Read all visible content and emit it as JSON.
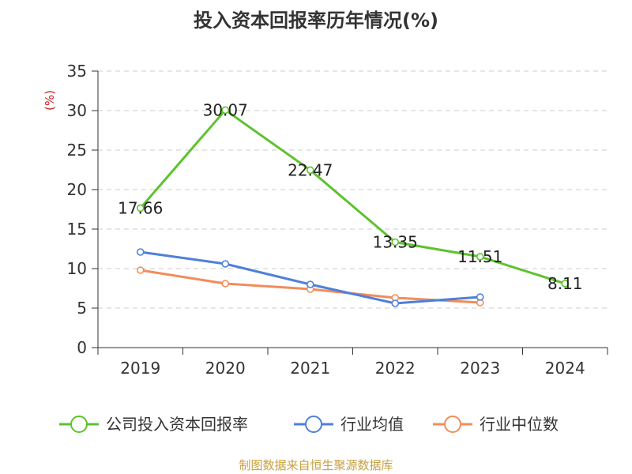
{
  "chart_data": {
    "type": "line",
    "title": "投入资本回报率历年情况(%)",
    "ylabel": "(%)",
    "xlabel": "",
    "categories": [
      "2019",
      "2020",
      "2021",
      "2022",
      "2023",
      "2024"
    ],
    "ylim": [
      0,
      35
    ],
    "yticks": [
      "0",
      "5",
      "10",
      "15",
      "20",
      "25",
      "30",
      "35"
    ],
    "grid": true,
    "legend_position": "bottom",
    "series": [
      {
        "name": "公司投入资本回报率",
        "color": "#5ec22e",
        "values": [
          17.66,
          30.07,
          22.47,
          13.35,
          11.51,
          8.11
        ],
        "labels": [
          "17.66",
          "30.07",
          "22.47",
          "13.35",
          "11.51",
          "8.11"
        ]
      },
      {
        "name": "行业均值",
        "color": "#4f7fd9",
        "values": [
          12.1,
          10.6,
          8.0,
          5.6,
          6.4,
          null
        ]
      },
      {
        "name": "行业中位数",
        "color": "#f28c5a",
        "values": [
          9.8,
          8.1,
          7.4,
          6.3,
          5.7,
          null
        ]
      }
    ]
  },
  "source": "制图数据来自恒生聚源数据库"
}
